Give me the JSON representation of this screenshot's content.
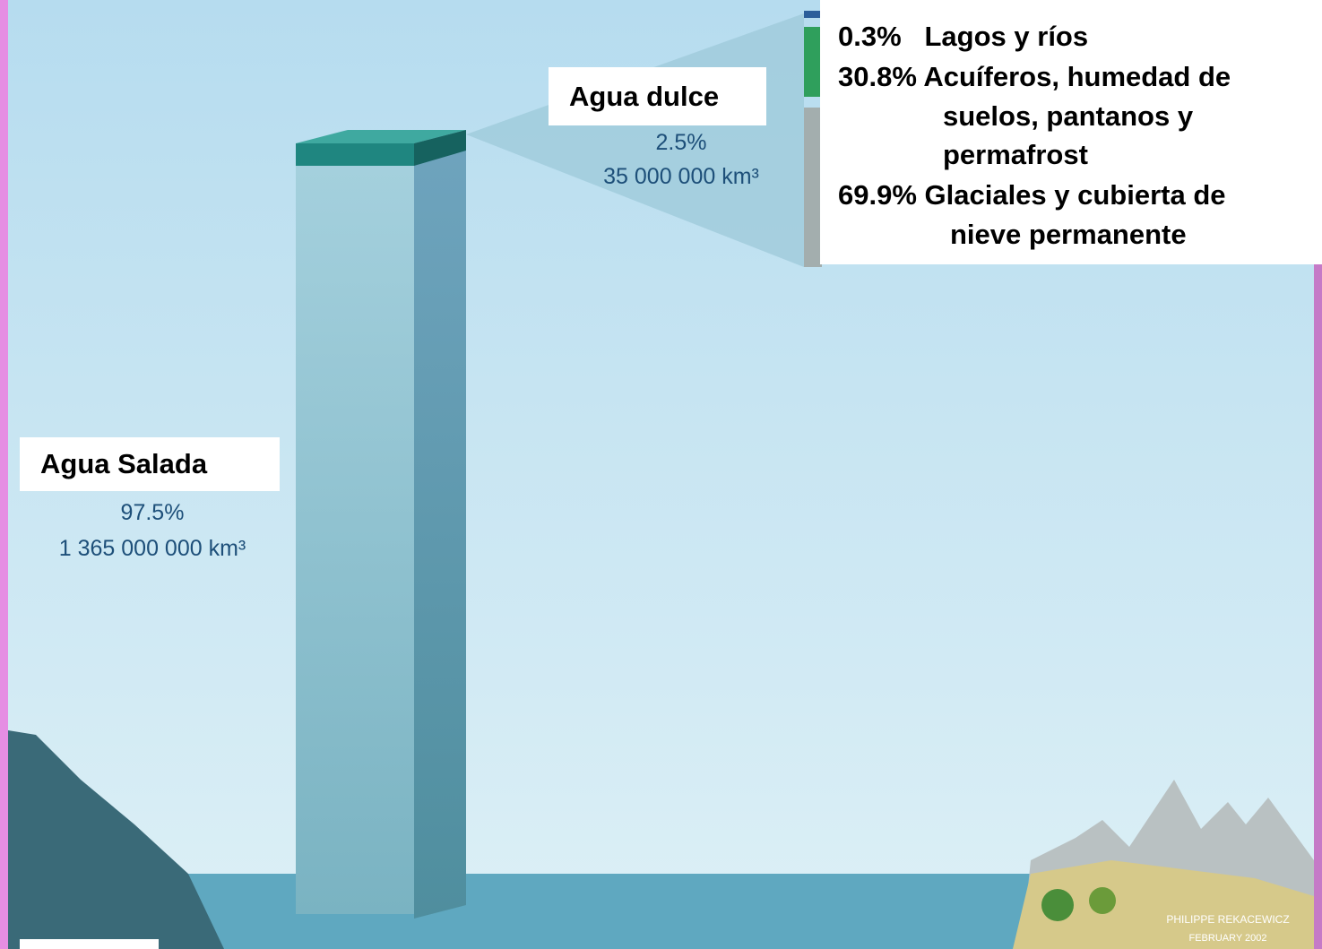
{
  "salt_water": {
    "label": "Agua Salada",
    "percent": "97.5%",
    "volume": "1 365 000 000 km³"
  },
  "fresh_water": {
    "label": "Agua dulce",
    "percent": "2.5%",
    "volume": "35 000 000 km³"
  },
  "breakdown": {
    "lines": [
      "0.3%   Lagos y ríos",
      "30.8% Acuíferos, humedad de",
      "suelos, pantanos y",
      "permafrost",
      "69.9% Glaciales y cubierta de",
      "nieve permanente"
    ]
  },
  "credit": {
    "author": "PHILIPPE REKACEWICZ",
    "date": "FEBRUARY 2002"
  }
}
